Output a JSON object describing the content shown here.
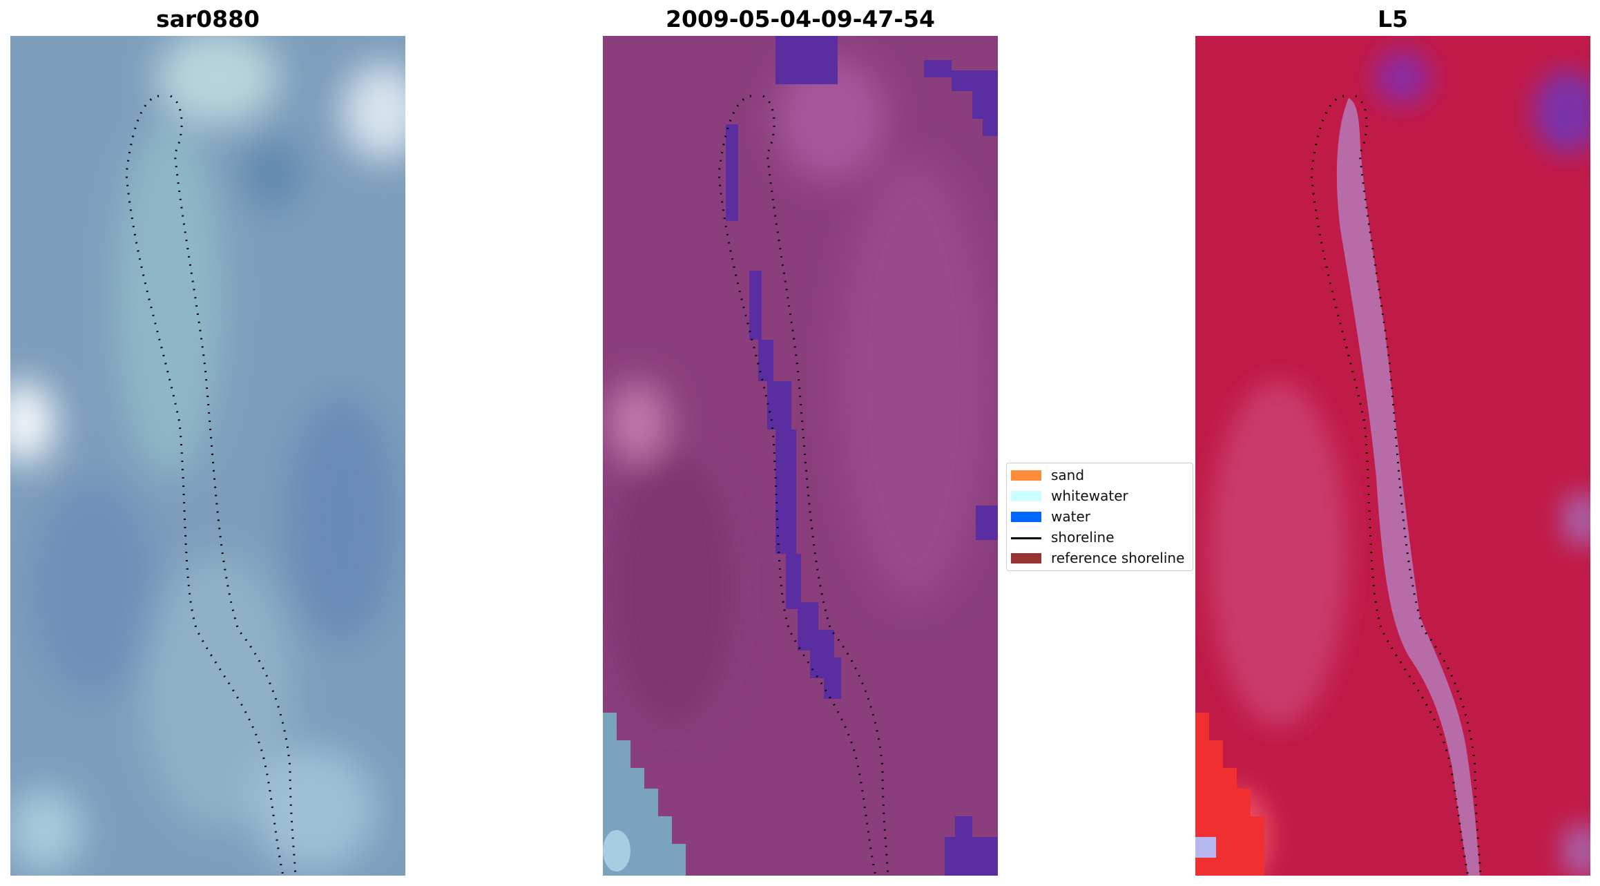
{
  "panels": {
    "left": {
      "title": "sar0880",
      "base": "#7d9dbb"
    },
    "middle": {
      "title": "2009-05-04-09-47-54",
      "base": "#8a3f7c"
    },
    "right": {
      "title": "L5",
      "base": "#c01a48"
    }
  },
  "legend": {
    "items": [
      {
        "label": "sand",
        "kind": "patch",
        "color": "#ff8c3a"
      },
      {
        "label": "whitewater",
        "kind": "patch",
        "color": "#ccffff"
      },
      {
        "label": "water",
        "kind": "patch",
        "color": "#0066ff"
      },
      {
        "label": "shoreline",
        "kind": "line",
        "color": "#000000"
      },
      {
        "label": "reference shoreline",
        "kind": "patch",
        "color": "#963232"
      }
    ]
  },
  "colors": {
    "water_class": "#5a2ea0",
    "shoreline": "#000000"
  }
}
